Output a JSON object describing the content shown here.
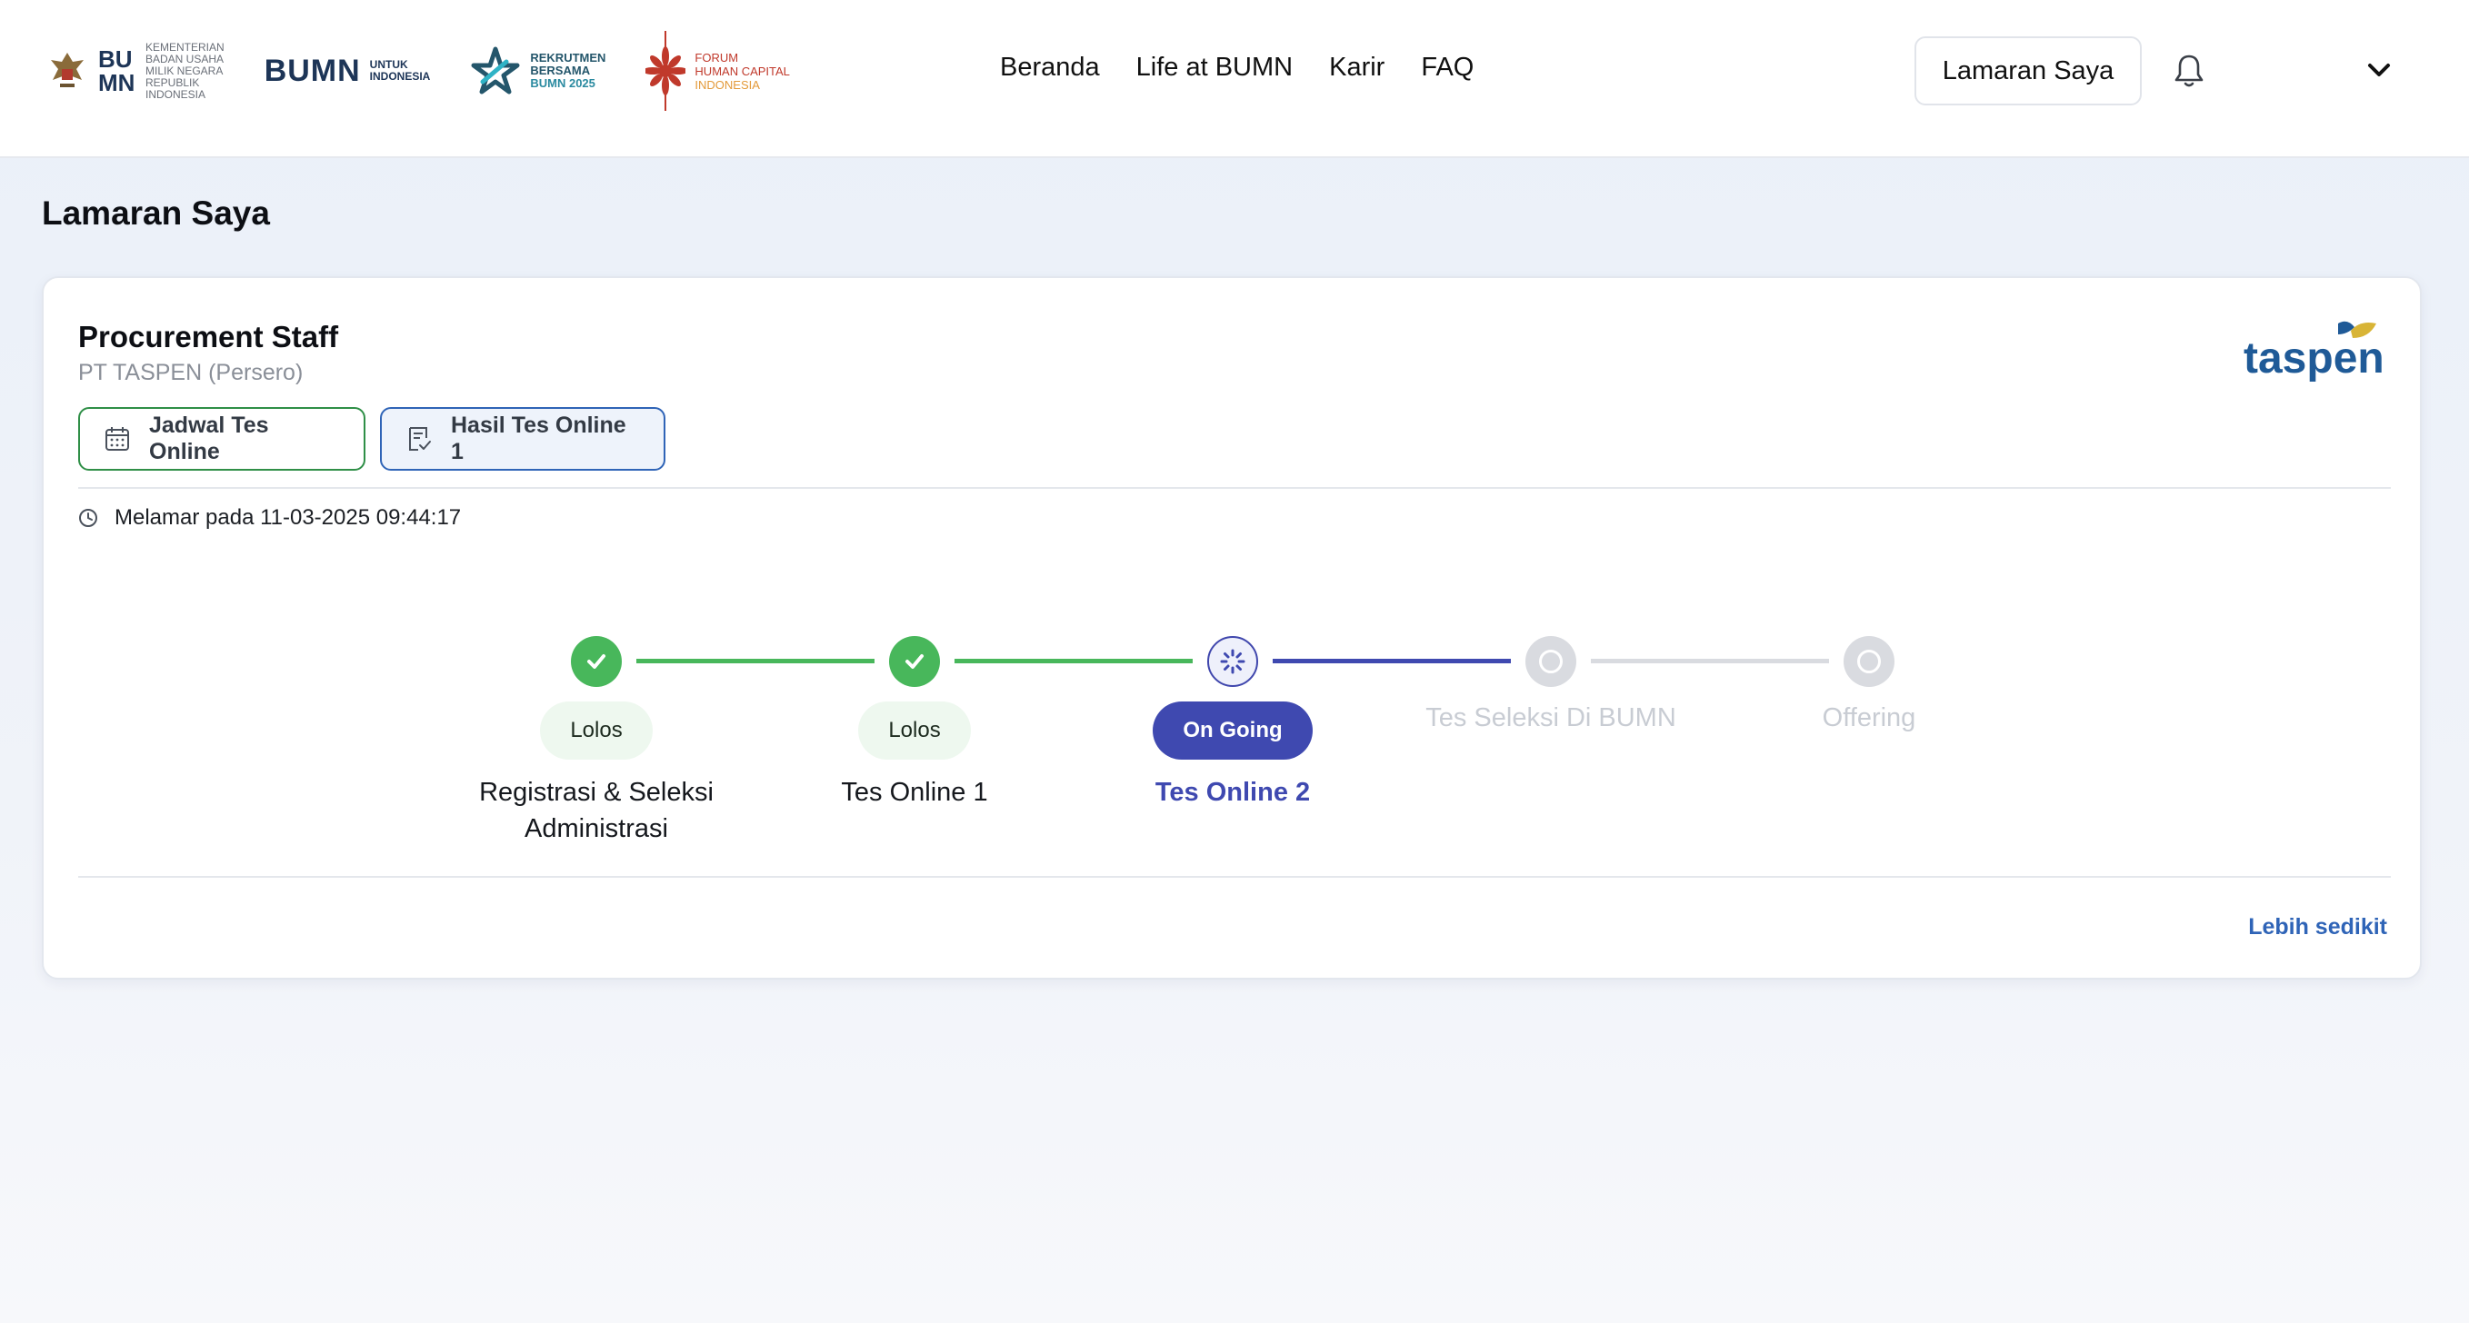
{
  "header": {
    "logos": {
      "bumn_small_lines": [
        "KEMENTERIAN",
        "BADAN USAHA",
        "MILIK NEGARA",
        "REPUBLIK",
        "INDONESIA"
      ],
      "bumn_word": "BUMN",
      "bumn_sub": [
        "UNTUK",
        "INDONESIA"
      ],
      "rekrutmen_lines": [
        "REKRUTMEN",
        "BERSAMA"
      ],
      "rekrutmen_year": "BUMN 2025",
      "forum_lines": [
        "FORUM",
        "HUMAN CAPITAL"
      ],
      "forum_last": "INDONESIA"
    },
    "nav": [
      "Beranda",
      "Life at BUMN",
      "Karir",
      "FAQ"
    ],
    "lamaran_button": "Lamaran Saya"
  },
  "page_title": "Lamaran Saya",
  "application": {
    "job_title": "Procurement Staff",
    "company": "PT TASPEN (Persero)",
    "company_logo_text": "taspen",
    "buttons": {
      "jadwal": "Jadwal Tes Online",
      "hasil": "Hasil Tes Online 1"
    },
    "applied_at": "Melamar pada 11-03-2025 09:44:17",
    "steps": [
      {
        "label_lines": [
          "Registrasi & Seleksi",
          "Administrasi"
        ],
        "badge": "Lolos",
        "state": "done"
      },
      {
        "label_lines": [
          "Tes Online 1"
        ],
        "badge": "Lolos",
        "state": "done"
      },
      {
        "label_lines": [
          "Tes Online 2"
        ],
        "badge": "On Going",
        "state": "active"
      },
      {
        "label_lines": [
          "Tes Seleksi Di BUMN"
        ],
        "badge": "",
        "state": "pending"
      },
      {
        "label_lines": [
          "Offering"
        ],
        "badge": "",
        "state": "pending"
      }
    ],
    "collapse_link": "Lebih sedikit"
  },
  "colors": {
    "done": "#48b75b",
    "active": "#3f49b0",
    "pending": "#d9dbe0",
    "link": "#2f64b7"
  }
}
